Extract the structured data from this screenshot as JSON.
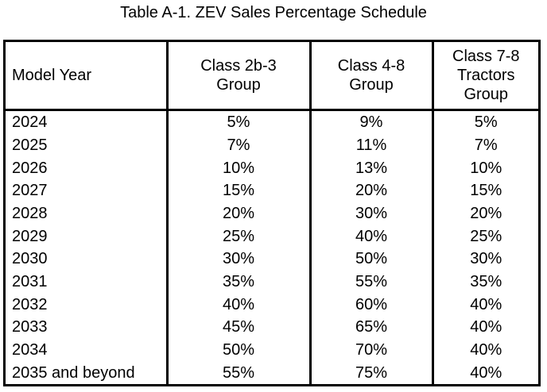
{
  "caption": "Table A-1. ZEV Sales Percentage Schedule",
  "table": {
    "headers": [
      {
        "lines": [
          "Model Year"
        ]
      },
      {
        "lines": [
          "Class 2b-3",
          "Group"
        ]
      },
      {
        "lines": [
          "Class 4-8",
          "Group"
        ]
      },
      {
        "lines": [
          "Class 7-8",
          "Tractors",
          "Group"
        ]
      }
    ],
    "rows": [
      {
        "year": "2024",
        "c1": "5%",
        "c2": "9%",
        "c3": "5%"
      },
      {
        "year": "2025",
        "c1": "7%",
        "c2": "11%",
        "c3": "7%"
      },
      {
        "year": "2026",
        "c1": "10%",
        "c2": "13%",
        "c3": "10%"
      },
      {
        "year": "2027",
        "c1": "15%",
        "c2": "20%",
        "c3": "15%"
      },
      {
        "year": "2028",
        "c1": "20%",
        "c2": "30%",
        "c3": "20%"
      },
      {
        "year": "2029",
        "c1": "25%",
        "c2": "40%",
        "c3": "25%"
      },
      {
        "year": "2030",
        "c1": "30%",
        "c2": "50%",
        "c3": "30%"
      },
      {
        "year": "2031",
        "c1": "35%",
        "c2": "55%",
        "c3": "35%"
      },
      {
        "year": "2032",
        "c1": "40%",
        "c2": "60%",
        "c3": "40%"
      },
      {
        "year": "2033",
        "c1": "45%",
        "c2": "65%",
        "c3": "40%"
      },
      {
        "year": "2034",
        "c1": "50%",
        "c2": "70%",
        "c3": "40%"
      },
      {
        "year": "2035 and beyond",
        "c1": "55%",
        "c2": "75%",
        "c3": "40%"
      }
    ]
  }
}
